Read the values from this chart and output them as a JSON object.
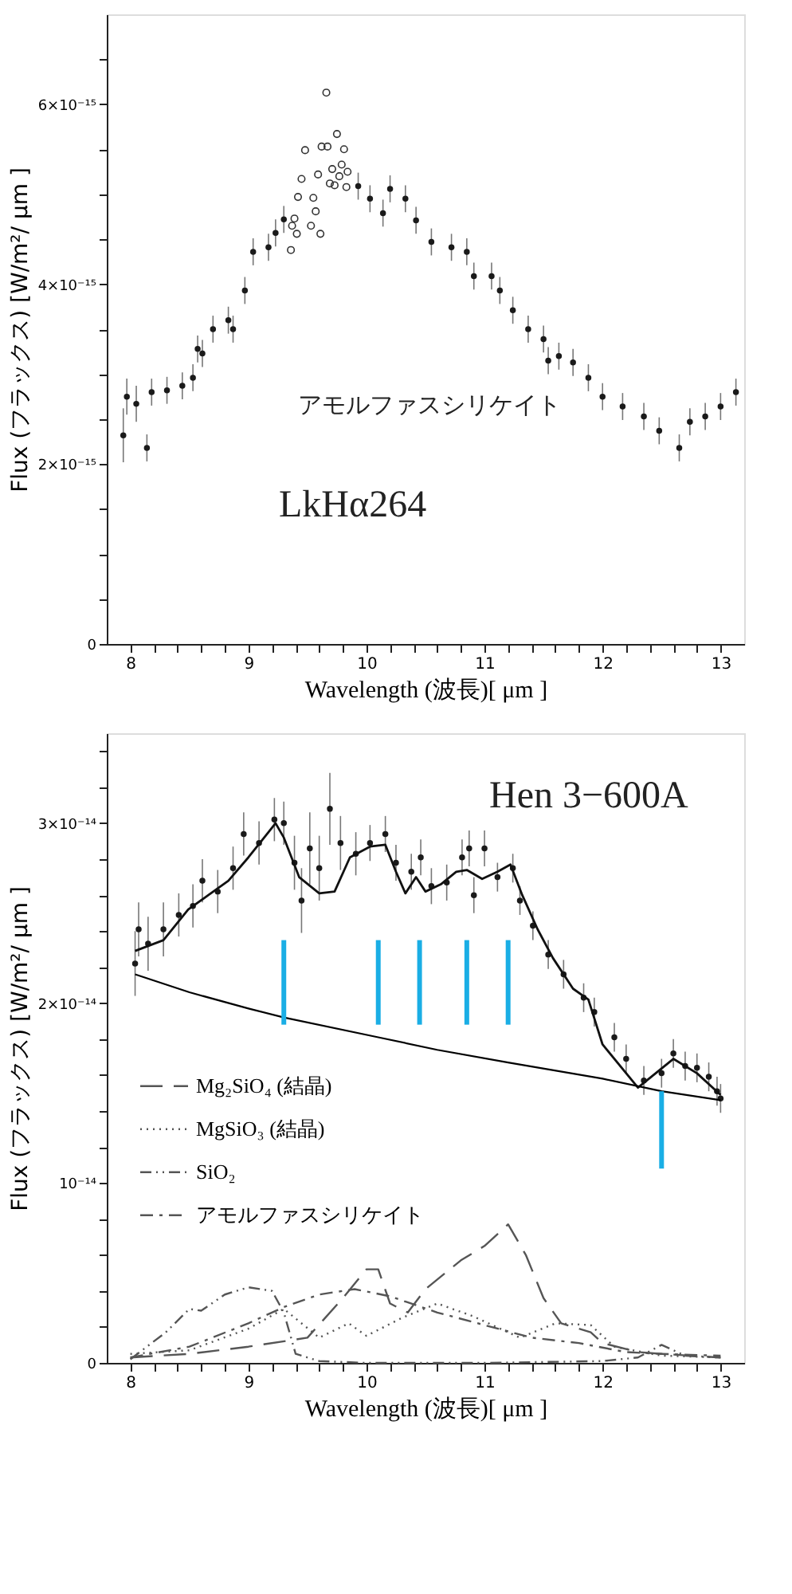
{
  "chart_data": [
    {
      "type": "scatter",
      "xlabel": "Wavelength (波長)[ μm ]",
      "ylabel": "Flux (フラックス) [W/m²/ μm ]",
      "grid": false,
      "legend": false,
      "xlim": [
        7.8,
        13.2
      ],
      "ylim": [
        0,
        7e-15
      ],
      "xticks": [
        {
          "value": 8,
          "label": "8"
        },
        {
          "value": 8.2,
          "label": null
        },
        {
          "value": 8.4,
          "label": null
        },
        {
          "value": 8.6,
          "label": null
        },
        {
          "value": 8.8,
          "label": null
        },
        {
          "value": 9,
          "label": "9"
        },
        {
          "value": 9.2,
          "label": null
        },
        {
          "value": 9.4,
          "label": null
        },
        {
          "value": 9.6,
          "label": null
        },
        {
          "value": 9.8,
          "label": null
        },
        {
          "value": 10,
          "label": "10"
        },
        {
          "value": 10.2,
          "label": null
        },
        {
          "value": 10.4,
          "label": null
        },
        {
          "value": 10.6,
          "label": null
        },
        {
          "value": 10.8,
          "label": null
        },
        {
          "value": 11,
          "label": "11"
        },
        {
          "value": 11.2,
          "label": null
        },
        {
          "value": 11.4,
          "label": null
        },
        {
          "value": 11.6,
          "label": null
        },
        {
          "value": 11.8,
          "label": null
        },
        {
          "value": 12,
          "label": "12"
        },
        {
          "value": 12.2,
          "label": null
        },
        {
          "value": 12.4,
          "label": null
        },
        {
          "value": 12.6,
          "label": null
        },
        {
          "value": 12.8,
          "label": null
        },
        {
          "value": 13,
          "label": "13"
        }
      ],
      "yticks": [
        {
          "value": 0,
          "label": "0"
        },
        {
          "value": 5e-16,
          "label": null
        },
        {
          "value": 1e-15,
          "label": null
        },
        {
          "value": 1.5e-15,
          "label": null
        },
        {
          "value": 2e-15,
          "label": "2×10⁻¹⁵"
        },
        {
          "value": 2.5e-15,
          "label": null
        },
        {
          "value": 3e-15,
          "label": null
        },
        {
          "value": 3.5e-15,
          "label": null
        },
        {
          "value": 4e-15,
          "label": "4×10⁻¹⁵"
        },
        {
          "value": 4.5e-15,
          "label": null
        },
        {
          "value": 5e-15,
          "label": null
        },
        {
          "value": 5.5e-15,
          "label": null
        },
        {
          "value": 6e-15,
          "label": "6×10⁻¹⁵"
        },
        {
          "value": 6.5e-15,
          "label": null
        }
      ],
      "annotations": [
        "アモルファスシリケイト",
        "LkHα264"
      ],
      "series": [
        {
          "marker": "circle",
          "color": "#1a1a1a",
          "x": [
            7.94,
            7.97,
            8.05,
            8.14,
            8.18,
            8.31,
            8.44,
            8.53,
            8.57,
            8.61,
            8.7,
            8.83,
            8.87,
            8.97,
            9.04,
            9.17,
            9.23,
            9.3,
            9.93,
            10.03,
            10.14,
            10.2,
            10.33,
            10.42,
            10.55,
            10.72,
            10.85,
            10.91,
            11.06,
            11.13,
            11.24,
            11.37,
            11.5,
            11.54,
            11.63,
            11.75,
            11.88,
            12.0,
            12.17,
            12.35,
            12.48,
            12.65,
            12.74,
            12.87,
            13.0,
            13.13
          ],
          "values": [
            2.32e-15,
            2.75e-15,
            2.67e-15,
            2.18e-15,
            2.8e-15,
            2.82e-15,
            2.87e-15,
            2.96e-15,
            3.28e-15,
            3.23e-15,
            3.5e-15,
            3.6e-15,
            3.5e-15,
            3.93e-15,
            4.36e-15,
            4.41e-15,
            4.57e-15,
            4.72e-15,
            5.09e-15,
            4.95e-15,
            4.79e-15,
            5.06e-15,
            4.95e-15,
            4.71e-15,
            4.47e-15,
            4.41e-15,
            4.36e-15,
            4.09e-15,
            4.09e-15,
            3.93e-15,
            3.71e-15,
            3.5e-15,
            3.39e-15,
            3.15e-15,
            3.2e-15,
            3.13e-15,
            2.96e-15,
            2.75e-15,
            2.64e-15,
            2.53e-15,
            2.37e-15,
            2.18e-15,
            2.47e-15,
            2.53e-15,
            2.64e-15,
            2.8e-15
          ],
          "errors": [
            3e-16,
            2e-16,
            2e-16,
            1.5e-16,
            1.5e-16,
            1.5e-16,
            1.5e-16,
            1.5e-16,
            1.5e-16,
            1.5e-16,
            1.5e-16,
            1.5e-16,
            1.5e-16,
            1.5e-16,
            1.5e-16,
            1.5e-16,
            1.5e-16,
            1.5e-16,
            1.5e-16,
            1.5e-16,
            1.5e-16,
            1.5e-16,
            1.5e-16,
            1.5e-16,
            1.5e-16,
            1.5e-16,
            1.5e-16,
            1.5e-16,
            1.5e-16,
            1.5e-16,
            1.5e-16,
            1.5e-16,
            1.5e-16,
            1.5e-16,
            1.5e-16,
            1.5e-16,
            1.5e-16,
            1.5e-16,
            1.5e-16,
            1.5e-16,
            1.5e-16,
            1.5e-16,
            1.5e-16,
            1.5e-16,
            1.5e-16,
            1.5e-16
          ]
        },
        {
          "marker": "circle",
          "color": "#333333",
          "x": [
            9.66,
            9.75,
            9.48,
            9.62,
            9.67,
            9.81,
            9.79,
            9.71,
            9.84,
            9.59,
            9.77,
            9.45,
            9.69,
            9.73,
            9.83,
            9.42,
            9.55,
            9.57,
            9.39,
            9.53,
            9.37,
            9.61,
            9.41,
            9.36
          ],
          "values": [
            6.13e-15,
            5.67e-15,
            5.49e-15,
            5.53e-15,
            5.53e-15,
            5.5e-15,
            5.33e-15,
            5.28e-15,
            5.25e-15,
            5.22e-15,
            5.2e-15,
            5.17e-15,
            5.12e-15,
            5.1e-15,
            5.08e-15,
            4.97e-15,
            4.96e-15,
            4.81e-15,
            4.73e-15,
            4.65e-15,
            4.65e-15,
            4.56e-15,
            4.56e-15,
            4.38e-15
          ]
        }
      ]
    },
    {
      "type": "scatter",
      "xlabel": "Wavelength (波長)[ μm ]",
      "ylabel": "Flux (フラックス) [W/m²/ μm ]",
      "grid": false,
      "legend": "left",
      "xlim": [
        7.8,
        13.2
      ],
      "ylim": [
        0,
        3.5e-14
      ],
      "xticks": [
        {
          "value": 8,
          "label": "8"
        },
        {
          "value": 8.2,
          "label": null
        },
        {
          "value": 8.4,
          "label": null
        },
        {
          "value": 8.6,
          "label": null
        },
        {
          "value": 8.8,
          "label": null
        },
        {
          "value": 9,
          "label": "9"
        },
        {
          "value": 9.2,
          "label": null
        },
        {
          "value": 9.4,
          "label": null
        },
        {
          "value": 9.6,
          "label": null
        },
        {
          "value": 9.8,
          "label": null
        },
        {
          "value": 10,
          "label": "10"
        },
        {
          "value": 10.2,
          "label": null
        },
        {
          "value": 10.4,
          "label": null
        },
        {
          "value": 10.6,
          "label": null
        },
        {
          "value": 10.8,
          "label": null
        },
        {
          "value": 11,
          "label": "11"
        },
        {
          "value": 11.2,
          "label": null
        },
        {
          "value": 11.4,
          "label": null
        },
        {
          "value": 11.6,
          "label": null
        },
        {
          "value": 11.8,
          "label": null
        },
        {
          "value": 12,
          "label": "12"
        },
        {
          "value": 12.2,
          "label": null
        },
        {
          "value": 12.4,
          "label": null
        },
        {
          "value": 12.6,
          "label": null
        },
        {
          "value": 12.8,
          "label": null
        },
        {
          "value": 13,
          "label": "13"
        }
      ],
      "yticks": [
        {
          "value": 0,
          "label": "0"
        },
        {
          "value": 2e-15,
          "label": null
        },
        {
          "value": 4e-15,
          "label": null
        },
        {
          "value": 6e-15,
          "label": null
        },
        {
          "value": 8e-15,
          "label": null
        },
        {
          "value": 1e-14,
          "label": "10⁻¹⁴"
        },
        {
          "value": 1.2e-14,
          "label": null
        },
        {
          "value": 1.4e-14,
          "label": null
        },
        {
          "value": 1.6e-14,
          "label": null
        },
        {
          "value": 1.8e-14,
          "label": null
        },
        {
          "value": 2e-14,
          "label": "2×10⁻¹⁴"
        },
        {
          "value": 2.2e-14,
          "label": null
        },
        {
          "value": 2.4e-14,
          "label": null
        },
        {
          "value": 2.6e-14,
          "label": null
        },
        {
          "value": 2.8e-14,
          "label": null
        },
        {
          "value": 3e-14,
          "label": "3×10⁻¹⁴"
        },
        {
          "value": 3.2e-14,
          "label": null
        },
        {
          "value": 3.4e-14,
          "label": null
        }
      ],
      "annotations": [
        "Hen 3−600A"
      ],
      "series": [
        {
          "marker": "circle",
          "color": "#1a1a1a",
          "x": [
            8.04,
            8.07,
            8.15,
            8.28,
            8.41,
            8.53,
            8.61,
            8.74,
            8.87,
            8.96,
            9.09,
            9.22,
            9.3,
            9.39,
            9.45,
            9.52,
            9.6,
            9.69,
            9.78,
            9.91,
            10.03,
            10.16,
            10.25,
            10.38,
            10.46,
            10.55,
            10.68,
            10.81,
            10.87,
            10.91,
            11.0,
            11.11,
            11.24,
            11.3,
            11.41,
            11.54,
            11.67,
            11.84,
            11.93,
            12.1,
            12.2,
            12.35,
            12.5,
            12.6,
            12.7,
            12.8,
            12.9,
            12.97,
            13.0
          ],
          "values": [
            2.22e-14,
            2.41e-14,
            2.33e-14,
            2.41e-14,
            2.49e-14,
            2.54e-14,
            2.68e-14,
            2.62e-14,
            2.75e-14,
            2.94e-14,
            2.89e-14,
            3.02e-14,
            3e-14,
            2.78e-14,
            2.57e-14,
            2.86e-14,
            2.75e-14,
            3.08e-14,
            2.89e-14,
            2.83e-14,
            2.89e-14,
            2.94e-14,
            2.78e-14,
            2.73e-14,
            2.81e-14,
            2.65e-14,
            2.67e-14,
            2.81e-14,
            2.86e-14,
            2.6e-14,
            2.86e-14,
            2.7e-14,
            2.75e-14,
            2.57e-14,
            2.43e-14,
            2.27e-14,
            2.16e-14,
            2.03e-14,
            1.95e-14,
            1.81e-14,
            1.69e-14,
            1.57e-14,
            1.61e-14,
            1.72e-14,
            1.65e-14,
            1.64e-14,
            1.59e-14,
            1.51e-14,
            1.47e-14
          ],
          "errors": [
            1.8e-15,
            1.5e-15,
            1.5e-15,
            1.5e-15,
            1.2e-15,
            1.2e-15,
            1.2e-15,
            1.2e-15,
            1.2e-15,
            1.2e-15,
            1.2e-15,
            1.2e-15,
            1.2e-15,
            1.5e-15,
            1.8e-15,
            2e-15,
            1.8e-15,
            2e-15,
            1.5e-15,
            1.2e-15,
            1e-15,
            1e-15,
            1e-15,
            1e-15,
            1e-15,
            1e-15,
            1e-15,
            1e-15,
            1e-15,
            1e-15,
            1e-15,
            8e-16,
            8e-16,
            8e-16,
            8e-16,
            8e-16,
            8e-16,
            8e-16,
            8e-16,
            8e-16,
            8e-16,
            8e-16,
            8e-16,
            8e-16,
            8e-16,
            8e-16,
            8e-16,
            8e-16,
            8e-16
          ]
        },
        {
          "type": "line",
          "color": "#111111",
          "line_style": "solid",
          "x": [
            8.04,
            8.28,
            8.49,
            8.66,
            8.83,
            9.0,
            9.17,
            9.23,
            9.3,
            9.43,
            9.6,
            9.73,
            9.86,
            10.03,
            10.16,
            10.25,
            10.33,
            10.42,
            10.5,
            10.63,
            10.76,
            10.85,
            10.98,
            11.11,
            11.22,
            11.32,
            11.45,
            11.58,
            11.75,
            11.88,
            12.0,
            12.3,
            12.6,
            12.8,
            13.0
          ],
          "values": [
            2.29e-14,
            2.35e-14,
            2.52e-14,
            2.6e-14,
            2.68e-14,
            2.81e-14,
            2.95e-14,
            3e-14,
            2.92e-14,
            2.7e-14,
            2.61e-14,
            2.62e-14,
            2.81e-14,
            2.87e-14,
            2.88e-14,
            2.73e-14,
            2.61e-14,
            2.7e-14,
            2.62e-14,
            2.66e-14,
            2.73e-14,
            2.74e-14,
            2.69e-14,
            2.73e-14,
            2.77e-14,
            2.6e-14,
            2.41e-14,
            2.25e-14,
            2.08e-14,
            2.02e-14,
            1.77e-14,
            1.53e-14,
            1.69e-14,
            1.61e-14,
            1.49e-14
          ]
        },
        {
          "type": "line",
          "color": "#000000",
          "line_style": "solid",
          "x": [
            8.04,
            8.5,
            9.0,
            9.3,
            10.1,
            10.6,
            11.2,
            12.0,
            12.5,
            13.0
          ],
          "values": [
            2.16e-14,
            2.06e-14,
            1.97e-14,
            1.92e-14,
            1.81e-14,
            1.74e-14,
            1.67e-14,
            1.58e-14,
            1.51e-14,
            1.46e-14
          ]
        },
        {
          "type": "bar",
          "color": "#1aaee5",
          "x": [
            9.3,
            10.1,
            10.45,
            10.85,
            11.2,
            12.5
          ],
          "base": [
            1.88e-14,
            1.88e-14,
            1.88e-14,
            1.88e-14,
            1.88e-14,
            1.08e-14
          ],
          "values": [
            4.7e-15,
            4.7e-15,
            4.7e-15,
            4.7e-15,
            4.7e-15,
            4.3e-15
          ]
        },
        {
          "type": "line",
          "name": "Mg₂SiO₄ (結晶)",
          "color": "#555555",
          "line_style": "longdash",
          "x": [
            8.0,
            8.5,
            9.0,
            9.5,
            9.8,
            10.0,
            10.1,
            10.2,
            10.35,
            10.5,
            10.8,
            11.0,
            11.2,
            11.35,
            11.5,
            11.65,
            11.9,
            12.0,
            12.3,
            12.5,
            13.0
          ],
          "values": [
            3e-16,
            5e-16,
            9e-16,
            1.4e-15,
            3.6e-15,
            5.2e-15,
            5.2e-15,
            3.3e-15,
            2.8e-15,
            4.1e-15,
            5.7e-15,
            6.5e-15,
            7.7e-15,
            6e-15,
            3.6e-15,
            2.2e-15,
            1.7e-15,
            1.1e-15,
            6e-16,
            5e-16,
            3e-16
          ]
        },
        {
          "type": "line",
          "name": "MgSiO₃ (結晶)",
          "color": "#555555",
          "line_style": "dotted",
          "x": [
            8.0,
            8.5,
            9.0,
            9.3,
            9.6,
            9.85,
            10.0,
            10.3,
            10.6,
            10.9,
            11.3,
            11.6,
            11.9,
            12.1,
            12.5,
            13.0
          ],
          "values": [
            5e-16,
            7e-16,
            1.9e-15,
            3e-15,
            1.4e-15,
            2.2e-15,
            1.5e-15,
            2.5e-15,
            3.3e-15,
            2.6e-15,
            1.4e-15,
            2.2e-15,
            2.1e-15,
            9e-16,
            4e-16,
            3e-16
          ]
        },
        {
          "type": "line",
          "name": "SiO₂",
          "color": "#555555",
          "line_style": "dashdotdot",
          "x": [
            8.0,
            8.3,
            8.5,
            8.6,
            8.8,
            9.0,
            9.2,
            9.3,
            9.4,
            9.6,
            10.0,
            11.0,
            12.0,
            12.3,
            12.5,
            12.7,
            13.0
          ],
          "values": [
            2e-16,
            1.7e-15,
            3e-15,
            2.9e-15,
            3.8e-15,
            4.2e-15,
            4e-15,
            2.8e-15,
            5e-16,
            1e-16,
            0,
            0,
            1e-16,
            3e-16,
            1e-15,
            4e-16,
            3e-16
          ]
        },
        {
          "type": "line",
          "name": "アモルファスシリケイト",
          "color": "#555555",
          "line_style": "dashdot",
          "x": [
            8.0,
            8.5,
            9.0,
            9.3,
            9.6,
            9.9,
            10.2,
            10.6,
            11.0,
            11.4,
            11.8,
            12.2,
            12.5,
            13.0
          ],
          "values": [
            3e-16,
            9e-16,
            2.2e-15,
            3.1e-15,
            3.8e-15,
            4.1e-15,
            3.7e-15,
            2.8e-15,
            2.1e-15,
            1.4e-15,
            1.1e-15,
            6e-16,
            5e-16,
            4e-16
          ]
        }
      ]
    }
  ]
}
